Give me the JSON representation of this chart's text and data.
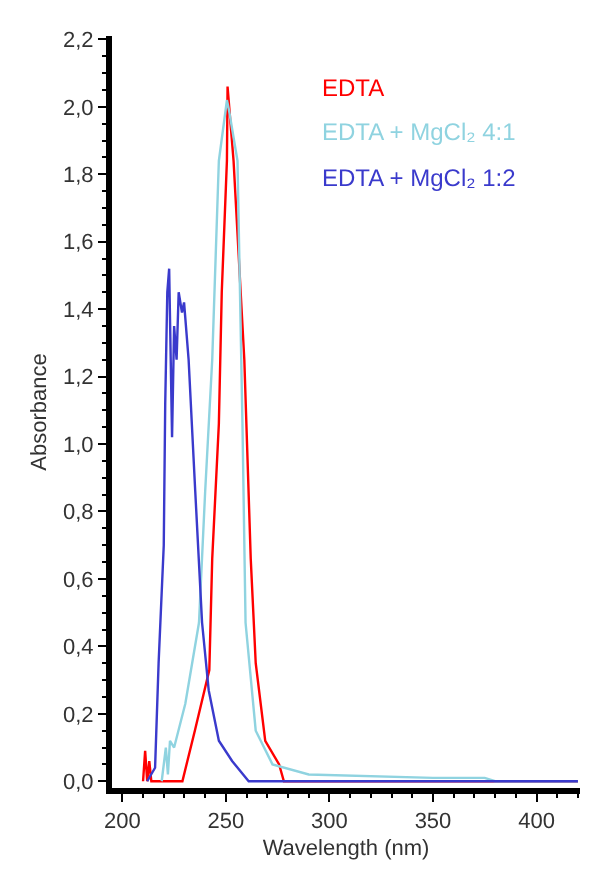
{
  "chart_data": {
    "type": "line",
    "xlabel": "Wavelength (nm)",
    "ylabel": "Absorbance",
    "xlim": [
      195,
      421
    ],
    "xticks": [
      200,
      250,
      300,
      350,
      400
    ],
    "ylim": [
      -0.02,
      2.21
    ],
    "yticks": [
      {
        "value": 0,
        "label": "0,0"
      },
      {
        "value": 0.2,
        "label": "0,2"
      },
      {
        "value": 0.4,
        "label": "0,4"
      },
      {
        "value": 0.6,
        "label": "0,6"
      },
      {
        "value": 0.8,
        "label": "0,8"
      },
      {
        "value": 1.0,
        "label": "1,0"
      },
      {
        "value": 1.2,
        "label": "1,2"
      },
      {
        "value": 1.4,
        "label": "1,4"
      },
      {
        "value": 1.6,
        "label": "1,6"
      },
      {
        "value": 1.8,
        "label": "1,8"
      },
      {
        "value": 2.0,
        "label": "2,0"
      },
      {
        "value": 2.2,
        "label": "2,2"
      }
    ],
    "grid": false,
    "legend": "top right",
    "marker": "none",
    "line_style": "solid",
    "series": [
      {
        "name": "EDTA",
        "color": "#ff0000",
        "x": [
          210,
          211,
          212,
          213,
          214,
          229,
          235,
          242,
          243.4,
          246.6,
          248,
          250.5,
          250.8,
          253.7,
          258.9,
          262,
          264.4,
          269,
          275.7,
          278,
          300,
          420
        ],
        "values": [
          0,
          0.09,
          0,
          0.06,
          0,
          0,
          0.15,
          0.33,
          0.66,
          1.06,
          1.45,
          1.84,
          2.06,
          1.84,
          1.25,
          0.66,
          0.35,
          0.12,
          0.05,
          0,
          0,
          0
        ]
      },
      {
        "name": "EDTA + MgCl₂ 4:1",
        "color": "#8fd3e0",
        "x": [
          219,
          221,
          222,
          223,
          225,
          230.4,
          237,
          240,
          243.4,
          246.6,
          250.5,
          251.5,
          255.6,
          258,
          259.5,
          264.4,
          272.5,
          290,
          350,
          375,
          380,
          420
        ],
        "values": [
          0,
          0.1,
          0.02,
          0.12,
          0.1,
          0.23,
          0.47,
          0.86,
          1.25,
          1.84,
          2.02,
          1.99,
          1.84,
          1.06,
          0.47,
          0.15,
          0.05,
          0.02,
          0.01,
          0.01,
          0,
          0
        ]
      },
      {
        "name": "EDTA + MgCl₂ 1:2",
        "color": "#3a3acc",
        "x": [
          212,
          215.8,
          217.5,
          220,
          220.7,
          221.7,
          222.6,
          224,
          225,
          226.2,
          227.2,
          228.8,
          229.8,
          232,
          235.2,
          238.5,
          241.7,
          246.6,
          253,
          261,
          420
        ],
        "values": [
          0,
          0.04,
          0.35,
          0.7,
          1.12,
          1.45,
          1.52,
          1.02,
          1.35,
          1.25,
          1.45,
          1.39,
          1.42,
          1.25,
          0.86,
          0.47,
          0.27,
          0.12,
          0.06,
          0,
          0
        ]
      }
    ]
  }
}
